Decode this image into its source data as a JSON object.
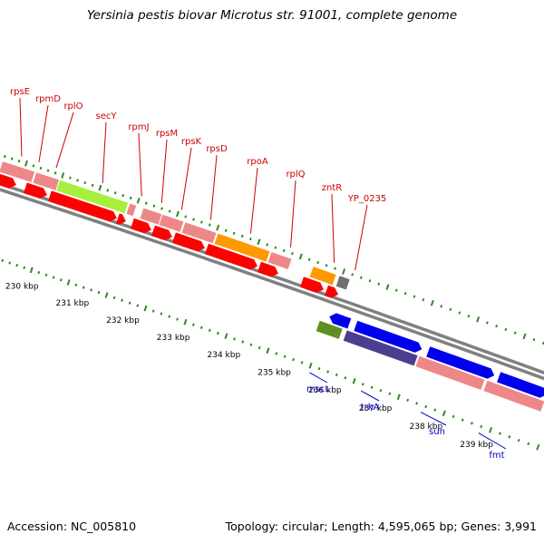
{
  "title": "Yersinia pestis biovar Microtus str. 91001, complete genome",
  "footer": {
    "accession": "Accession: NC_005810",
    "summary": "Topology: circular; Length: 4,595,065 bp; Genes: 3,991"
  },
  "colors": {
    "backbone": "#808080",
    "tick_mark": "#2e8b22",
    "forward_label": "#cc0000",
    "reverse_label": "#0000cc",
    "gene_red": "#ff0000",
    "gene_pink": "#ee8888",
    "gene_lime": "#a6f03c",
    "gene_orange": "#ff9900",
    "gene_gray": "#707070",
    "gene_blue": "#0000ee",
    "gene_navy": "#4a3f8f",
    "gene_olive": "#5f8f20"
  },
  "scale": {
    "labels": [
      "230 kbp",
      "231 kbp",
      "232 kbp",
      "233 kbp",
      "234 kbp",
      "235 kbp",
      "236 kbp",
      "237 kbp",
      "238 kbp",
      "239 kbp"
    ]
  },
  "forward_gene_labels": [
    "rpsE",
    "rpmD",
    "rplO",
    "secY",
    "rpmJ",
    "rpsM",
    "rpsK",
    "rpsD",
    "rpoA",
    "rplQ",
    "zntR",
    "YP_0235"
  ],
  "reverse_gene_labels": [
    "mscL",
    "trkA",
    "sun",
    "fmt"
  ]
}
